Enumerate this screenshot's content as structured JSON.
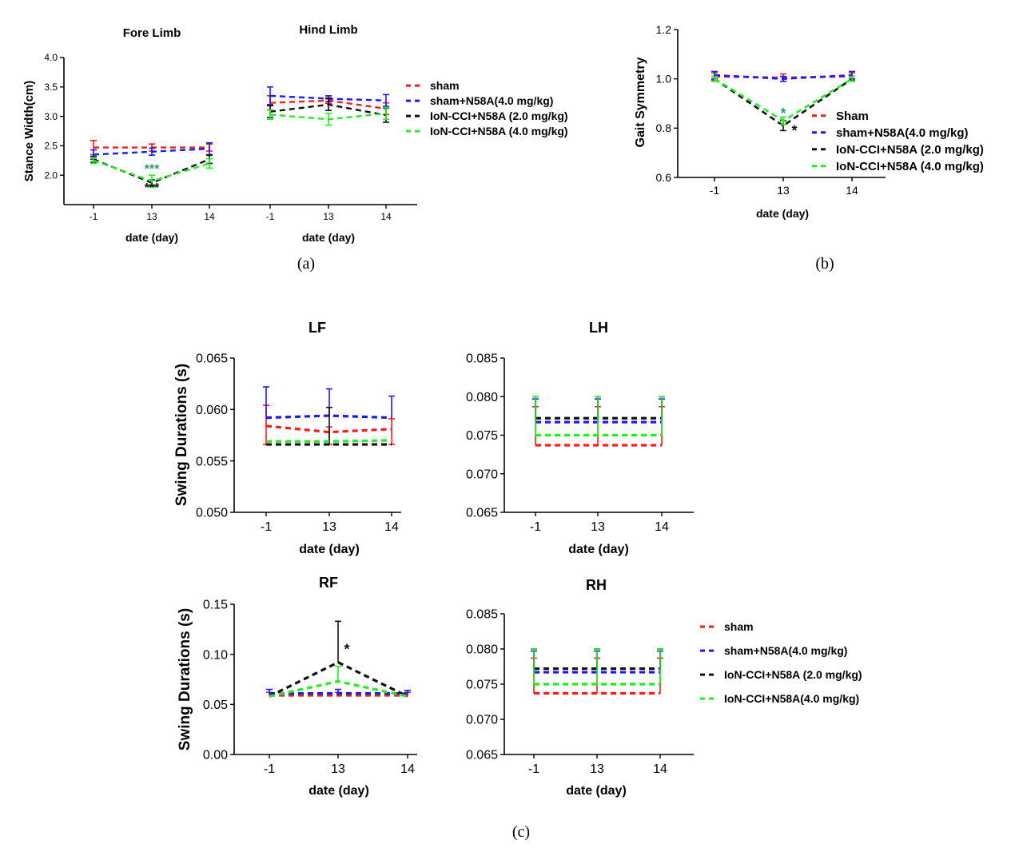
{
  "panel_labels": {
    "a": "(a)",
    "b": "(b)",
    "c": "(c)"
  },
  "series_colors": {
    "red": "#ff1a1a",
    "blue": "#1a1aff",
    "black": "#111111",
    "green": "#22ee22"
  },
  "sig_colors": {
    "teal": "#2a9d78",
    "black": "#111111"
  },
  "chart_data": [
    {
      "id": "a",
      "type": "line",
      "subtitles": [
        "Fore Limb",
        "Hind Limb"
      ],
      "xlabel_groups": [
        "date (day)",
        "date (day)"
      ],
      "ylabel": "Stance Width(cm)",
      "ylim": [
        1.5,
        4.0
      ],
      "yticks": [
        "4.0",
        "3.5",
        "3.0",
        "2.5",
        "2.0"
      ],
      "ytick_values": [
        4.0,
        3.5,
        3.0,
        2.5,
        2.0
      ],
      "categories": [
        "-1",
        "13",
        "14",
        "-1",
        "13",
        "14"
      ],
      "groups": [
        [
          0,
          1,
          2
        ],
        [
          3,
          4,
          5
        ]
      ],
      "legend": [
        "sham",
        "sham+N58A(4.0 mg/kg)",
        "IoN-CCI+N58A (2.0  mg/kg)",
        "IoN-CCI+N58A (4.0  mg/kg)"
      ],
      "series": [
        {
          "name": "sham",
          "color": "red",
          "values": [
            2.47,
            2.47,
            2.47,
            3.23,
            3.27,
            3.13
          ],
          "err": [
            0.12,
            0.06,
            0.06,
            0.12,
            0.05,
            0.1
          ]
        },
        {
          "name": "sham+N58A(4.0 mg/kg)",
          "color": "blue",
          "values": [
            2.35,
            2.4,
            2.45,
            3.35,
            3.3,
            3.27
          ],
          "err": [
            0.08,
            0.06,
            0.1,
            0.15,
            0.05,
            0.1
          ]
        },
        {
          "name": "IoN-CCI+N58A (2.0  mg/kg)",
          "color": "black",
          "values": [
            2.27,
            1.87,
            2.27,
            3.08,
            3.2,
            3.02
          ],
          "err": [
            0.05,
            0.05,
            0.07,
            0.1,
            0.1,
            0.12
          ]
        },
        {
          "name": "IoN-CCI+N58A (4.0  mg/kg)",
          "color": "green",
          "values": [
            2.25,
            1.9,
            2.2,
            3.03,
            2.95,
            3.05
          ],
          "err": [
            0.05,
            0.1,
            0.08,
            0.08,
            0.1,
            0.1
          ]
        }
      ],
      "annotations": [
        {
          "text": "***",
          "x_index": 1,
          "y": 2.04,
          "color": "teal"
        },
        {
          "text": "***",
          "x_index": 1,
          "y": 1.72,
          "color": "black"
        }
      ]
    },
    {
      "id": "b",
      "type": "line",
      "xlabel": "date (day)",
      "ylabel": "Gait Symmetry",
      "ylim": [
        0.6,
        1.2
      ],
      "yticks": [
        "1.2",
        "1.0",
        "0.8",
        "0.6"
      ],
      "ytick_values": [
        1.2,
        1.0,
        0.8,
        0.6
      ],
      "categories": [
        "-1",
        "13",
        "14"
      ],
      "legend": [
        "Sham",
        "sham+N58A(4.0 mg/kg)",
        "IoN-CCI+N58A (2.0 mg/kg)",
        "IoN-CCI+N58A (4.0 mg/kg)"
      ],
      "series": [
        {
          "name": "Sham",
          "color": "red",
          "values": [
            1.01,
            1.005,
            1.01
          ],
          "err": [
            0.015,
            0.015,
            0.015
          ]
        },
        {
          "name": "sham+N58A(4.0 mg/kg)",
          "color": "blue",
          "values": [
            1.015,
            1.0,
            1.015
          ],
          "err": [
            0.015,
            0.01,
            0.015
          ]
        },
        {
          "name": "IoN-CCI+N58A (2.0 mg/kg)",
          "color": "black",
          "values": [
            1.0,
            0.81,
            1.0
          ],
          "err": [
            0.01,
            0.02,
            0.01
          ]
        },
        {
          "name": "IoN-CCI+N58A (4.0 mg/kg)",
          "color": "green",
          "values": [
            1.0,
            0.83,
            1.0
          ],
          "err": [
            0.01,
            0.015,
            0.01
          ]
        }
      ],
      "annotations": [
        {
          "text": "*",
          "x_index": 1,
          "y": 0.84,
          "color": "teal"
        },
        {
          "text": "*",
          "x_index": 1,
          "y": 0.77,
          "color": "black"
        }
      ]
    },
    {
      "id": "c-LF",
      "type": "line",
      "title": "LF",
      "xlabel": "date (day)",
      "ylabel": "Swing Durations (s)",
      "ylim": [
        0.05,
        0.065
      ],
      "yticks": [
        "0.065",
        "0.060",
        "0.055",
        "0.050"
      ],
      "ytick_values": [
        0.065,
        0.06,
        0.055,
        0.05
      ],
      "categories": [
        "-1",
        "13",
        "14"
      ],
      "series": [
        {
          "name": "sham",
          "color": "red",
          "values": [
            0.0584,
            0.0578,
            0.0581
          ],
          "err_up": [
            0.002,
            0.0005,
            0.001
          ],
          "err_down": [
            0.0018,
            0.0012,
            0.0015
          ]
        },
        {
          "name": "sham+N58A(4.0 mg/kg)",
          "color": "blue",
          "values": [
            0.0592,
            0.0594,
            0.0592
          ],
          "err_up": [
            0.003,
            0.0026,
            0.0021
          ],
          "err_down": [
            0.0,
            0.0,
            0.0
          ]
        },
        {
          "name": "IoN-CCI+N58A (2.0 mg/kg)",
          "color": "black",
          "values": [
            0.0566,
            0.0566,
            0.0566
          ],
          "err_up": [
            0.0,
            0.0036,
            0.0
          ],
          "err_down": [
            0.0,
            0.0,
            0.0
          ]
        },
        {
          "name": "IoN-CCI+N58A (4.0 mg/kg)",
          "color": "green",
          "values": [
            0.0569,
            0.0569,
            0.057
          ],
          "err_up": [
            0.0,
            0.0,
            0.0
          ],
          "err_down": [
            0.0,
            0.0,
            0.0
          ]
        }
      ]
    },
    {
      "id": "c-LH",
      "type": "line",
      "title": "LH",
      "xlabel": "date (day)",
      "ylabel": "",
      "ylim": [
        0.065,
        0.085
      ],
      "yticks": [
        "0.085",
        "0.080",
        "0.075",
        "0.070",
        "0.065"
      ],
      "ytick_values": [
        0.085,
        0.08,
        0.075,
        0.07,
        0.065
      ],
      "categories": [
        "-1",
        "13",
        "14"
      ],
      "series": [
        {
          "name": "sham",
          "color": "red",
          "values": [
            0.0737,
            0.0737,
            0.0737
          ],
          "err_up": [
            0.005,
            0.005,
            0.005
          ],
          "err_down": [
            0.0,
            0.0,
            0.0
          ]
        },
        {
          "name": "sham+N58A(4.0 mg/kg)",
          "color": "blue",
          "values": [
            0.0767,
            0.0767,
            0.0767
          ],
          "err_up": [
            0.003,
            0.003,
            0.003
          ],
          "err_down": [
            0.0,
            0.0,
            0.0
          ]
        },
        {
          "name": "IoN-CCI+N58A (2.0 mg/kg)",
          "color": "black",
          "values": [
            0.0772,
            0.0772,
            0.0772
          ],
          "err_up": [
            0.0028,
            0.0028,
            0.0028
          ],
          "err_down": [
            0.0,
            0.0,
            0.0
          ]
        },
        {
          "name": "IoN-CCI+N58A (4.0 mg/kg)",
          "color": "green",
          "values": [
            0.075,
            0.075,
            0.075
          ],
          "err_up": [
            0.005,
            0.005,
            0.005
          ],
          "err_down": [
            0.0,
            0.0,
            0.0
          ]
        }
      ]
    },
    {
      "id": "c-RF",
      "type": "line",
      "title": "RF",
      "xlabel": "date (day)",
      "ylabel": "Swing Durations (s)",
      "ylim": [
        0.0,
        0.15
      ],
      "yticks": [
        "0.15",
        "0.10",
        "0.05",
        "0.00"
      ],
      "ytick_values": [
        0.15,
        0.1,
        0.05,
        0.0
      ],
      "categories": [
        "-1",
        "13",
        "14"
      ],
      "series": [
        {
          "name": "sham",
          "color": "red",
          "values": [
            0.059,
            0.059,
            0.059
          ],
          "err_up": [
            0.003,
            0.003,
            0.003
          ],
          "err_down": [
            0.0,
            0.0,
            0.0
          ]
        },
        {
          "name": "sham+N58A(4.0 mg/kg)",
          "color": "blue",
          "values": [
            0.061,
            0.061,
            0.061
          ],
          "err_up": [
            0.004,
            0.004,
            0.003
          ],
          "err_down": [
            0.0,
            0.0,
            0.0
          ]
        },
        {
          "name": "IoN-CCI+N58A (2.0 mg/kg)",
          "color": "black",
          "values": [
            0.058,
            0.092,
            0.058
          ],
          "err_up": [
            0.0,
            0.041,
            0.0
          ],
          "err_down": [
            0.0,
            0.0,
            0.0
          ]
        },
        {
          "name": "IoN-CCI+N58A (4.0 mg/kg)",
          "color": "green",
          "values": [
            0.058,
            0.073,
            0.058
          ],
          "err_up": [
            0.0,
            0.015,
            0.0
          ],
          "err_down": [
            0.0,
            0.0,
            0.0
          ]
        }
      ],
      "annotations": [
        {
          "text": "*",
          "x_index": 1,
          "y": 0.1,
          "color": "black"
        }
      ]
    },
    {
      "id": "c-RH",
      "type": "line",
      "title": "RH",
      "xlabel": "date (day)",
      "ylabel": "",
      "ylim": [
        0.065,
        0.085
      ],
      "yticks": [
        "0.085",
        "0.080",
        "0.075",
        "0.070",
        "0.065"
      ],
      "ytick_values": [
        0.085,
        0.08,
        0.075,
        0.07,
        0.065
      ],
      "categories": [
        "-1",
        "13",
        "14"
      ],
      "legend": [
        "sham",
        "sham+N58A(4.0 mg/kg)",
        "IoN-CCI+N58A (2.0 mg/kg)",
        "IoN-CCI+N58A(4.0 mg/kg)"
      ],
      "series": [
        {
          "name": "sham",
          "color": "red",
          "values": [
            0.0737,
            0.0737,
            0.0737
          ],
          "err_up": [
            0.005,
            0.005,
            0.005
          ],
          "err_down": [
            0.0,
            0.0,
            0.0
          ]
        },
        {
          "name": "sham+N58A(4.0 mg/kg)",
          "color": "blue",
          "values": [
            0.0767,
            0.0767,
            0.0767
          ],
          "err_up": [
            0.003,
            0.003,
            0.003
          ],
          "err_down": [
            0.0,
            0.0,
            0.0
          ]
        },
        {
          "name": "IoN-CCI+N58A (2.0 mg/kg)",
          "color": "black",
          "values": [
            0.0772,
            0.0772,
            0.0772
          ],
          "err_up": [
            0.0028,
            0.0028,
            0.0028
          ],
          "err_down": [
            0.0,
            0.0,
            0.0
          ]
        },
        {
          "name": "IoN-CCI+N58A(4.0 mg/kg)",
          "color": "green",
          "values": [
            0.075,
            0.075,
            0.075
          ],
          "err_up": [
            0.005,
            0.005,
            0.005
          ],
          "err_down": [
            0.0,
            0.0,
            0.0
          ]
        }
      ]
    }
  ]
}
